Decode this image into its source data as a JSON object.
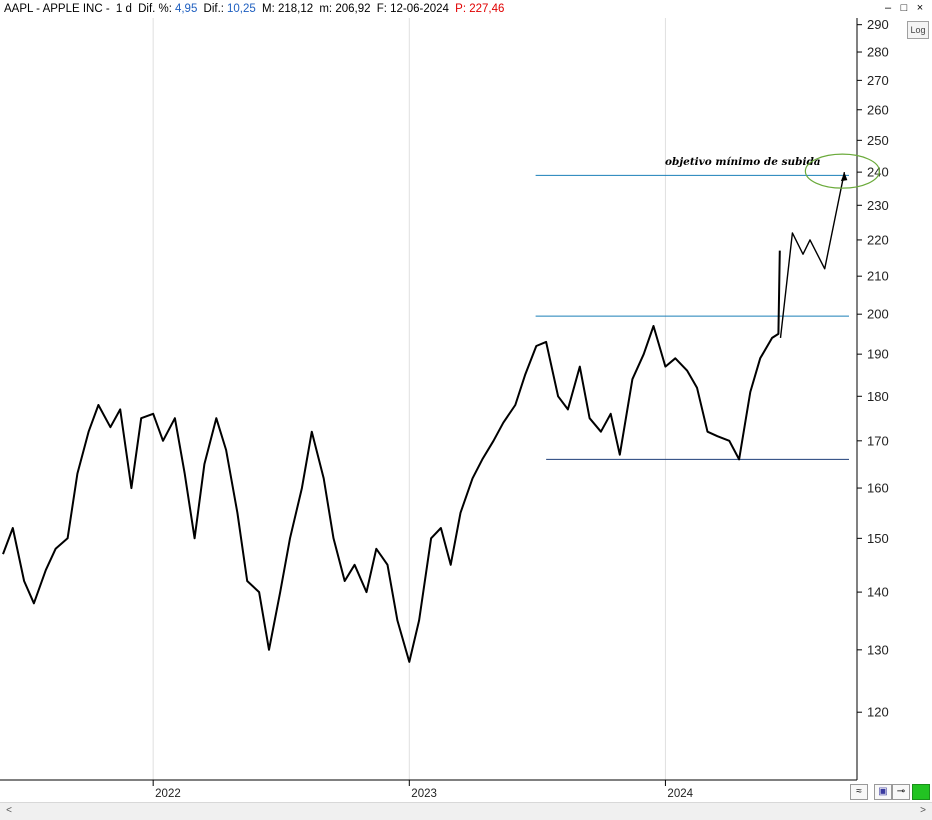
{
  "header": {
    "symbol": "AAPL - APPLE INC -",
    "interval": "1 d",
    "dif_pct_label": "Dif. %:",
    "dif_pct_value": "4,95",
    "dif_label": "Dif.:",
    "dif_value": "10,25",
    "max_label": "M: 218,12",
    "min_label": "m: 206,92",
    "date_label": "F: 12-06-2024",
    "price_label": "P: 227,46"
  },
  "window_controls": {
    "minimize": "–",
    "restore": "□",
    "close": "×"
  },
  "controls": {
    "log_button": "Log"
  },
  "annotation": {
    "text": "objetivo mínimo de subida"
  },
  "chart_data": {
    "type": "line",
    "yscale": "log",
    "ylim": [
      110,
      291
    ],
    "y_ticks": [
      120,
      130,
      140,
      150,
      160,
      170,
      180,
      190,
      200,
      210,
      220,
      230,
      240,
      250,
      260,
      270,
      280,
      290
    ],
    "x_ticks": [
      "2022",
      "2023",
      "2024"
    ],
    "x_tick_dates": [
      "2022-01-01",
      "2023-01-01",
      "2024-01-01"
    ],
    "xlim": [
      "2021-06-01",
      "2024-09-30"
    ],
    "series": [
      {
        "values": [
          [
            "2021-06-01",
            147
          ],
          [
            "2021-06-15",
            152
          ],
          [
            "2021-07-01",
            142
          ],
          [
            "2021-07-15",
            138
          ],
          [
            "2021-08-01",
            144
          ],
          [
            "2021-08-15",
            148
          ],
          [
            "2021-09-01",
            150
          ],
          [
            "2021-09-15",
            163
          ],
          [
            "2021-10-01",
            172
          ],
          [
            "2021-10-15",
            178
          ],
          [
            "2021-11-01",
            173
          ],
          [
            "2021-11-15",
            177
          ],
          [
            "2021-12-01",
            160
          ],
          [
            "2021-12-15",
            175
          ],
          [
            "2022-01-01",
            176
          ],
          [
            "2022-01-15",
            170
          ],
          [
            "2022-02-01",
            175
          ],
          [
            "2022-02-15",
            163
          ],
          [
            "2022-03-01",
            150
          ],
          [
            "2022-03-15",
            165
          ],
          [
            "2022-04-01",
            175
          ],
          [
            "2022-04-15",
            168
          ],
          [
            "2022-05-01",
            155
          ],
          [
            "2022-05-15",
            142
          ],
          [
            "2022-06-01",
            140
          ],
          [
            "2022-06-15",
            130
          ],
          [
            "2022-07-01",
            140
          ],
          [
            "2022-07-15",
            150
          ],
          [
            "2022-08-01",
            160
          ],
          [
            "2022-08-15",
            172
          ],
          [
            "2022-09-01",
            162
          ],
          [
            "2022-09-15",
            150
          ],
          [
            "2022-10-01",
            142
          ],
          [
            "2022-10-15",
            145
          ],
          [
            "2022-11-01",
            140
          ],
          [
            "2022-11-15",
            148
          ],
          [
            "2022-12-01",
            145
          ],
          [
            "2022-12-15",
            135
          ],
          [
            "2023-01-01",
            128
          ],
          [
            "2023-01-15",
            135
          ],
          [
            "2023-02-01",
            150
          ],
          [
            "2023-02-15",
            152
          ],
          [
            "2023-03-01",
            145
          ],
          [
            "2023-03-15",
            155
          ],
          [
            "2023-04-01",
            162
          ],
          [
            "2023-04-15",
            166
          ],
          [
            "2023-05-01",
            170
          ],
          [
            "2023-05-15",
            174
          ],
          [
            "2023-06-01",
            178
          ],
          [
            "2023-06-15",
            185
          ],
          [
            "2023-07-01",
            192
          ],
          [
            "2023-07-15",
            193
          ],
          [
            "2023-08-01",
            180
          ],
          [
            "2023-08-15",
            177
          ],
          [
            "2023-09-01",
            187
          ],
          [
            "2023-09-15",
            175
          ],
          [
            "2023-10-01",
            172
          ],
          [
            "2023-10-15",
            176
          ],
          [
            "2023-10-28",
            167
          ],
          [
            "2023-11-15",
            184
          ],
          [
            "2023-12-01",
            190
          ],
          [
            "2023-12-15",
            197
          ],
          [
            "2024-01-01",
            187
          ],
          [
            "2024-01-15",
            189
          ],
          [
            "2024-02-01",
            186
          ],
          [
            "2024-02-15",
            182
          ],
          [
            "2024-03-01",
            172
          ],
          [
            "2024-03-15",
            171
          ],
          [
            "2024-04-01",
            170
          ],
          [
            "2024-04-15",
            166
          ],
          [
            "2024-05-01",
            181
          ],
          [
            "2024-05-15",
            189
          ],
          [
            "2024-06-01",
            194
          ],
          [
            "2024-06-10",
            195
          ],
          [
            "2024-06-12",
            217
          ]
        ]
      },
      {
        "values": [
          [
            "2024-06-13",
            194
          ],
          [
            "2024-06-30",
            222
          ],
          [
            "2024-07-15",
            216
          ],
          [
            "2024-07-25",
            220
          ],
          [
            "2024-08-15",
            212
          ],
          [
            "2024-09-12",
            240
          ]
        ]
      }
    ],
    "horizontal_lines": [
      {
        "y": 239,
        "from": "2023-06-30",
        "to": "2024-09-30",
        "color": "#1a7fb8"
      },
      {
        "y": 199.5,
        "from": "2023-06-30",
        "to": "2024-09-30",
        "color": "#1a7fb8"
      },
      {
        "y": 166,
        "from": "2023-07-15",
        "to": "2024-09-30",
        "color": "#1f3f7a"
      }
    ],
    "target_point": {
      "x": "2024-09-12",
      "y": 240
    },
    "colors": {
      "price": "#000000",
      "hlines": "#1a7fb8",
      "support": "#1f3f7a",
      "ellipse": "#6aaa3a",
      "grid": "#e0e0e0"
    }
  }
}
